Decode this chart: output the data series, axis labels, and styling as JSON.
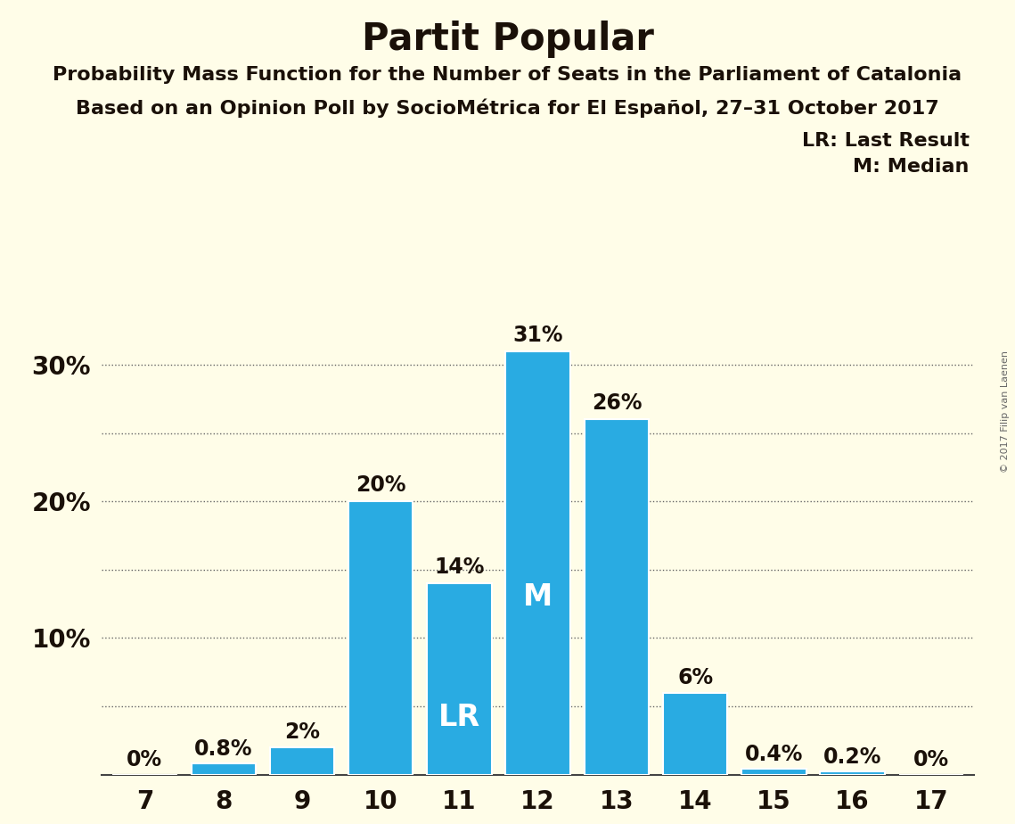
{
  "title": "Partit Popular",
  "subtitle1": "Probability Mass Function for the Number of Seats in the Parliament of Catalonia",
  "subtitle2": "Based on an Opinion Poll by SocioMétrica for El Español, 27–31 October 2017",
  "copyright": "© 2017 Filip van Laenen",
  "seats": [
    7,
    8,
    9,
    10,
    11,
    12,
    13,
    14,
    15,
    16,
    17
  ],
  "probabilities": [
    0.0,
    0.8,
    2.0,
    20.0,
    14.0,
    31.0,
    26.0,
    6.0,
    0.4,
    0.2,
    0.0
  ],
  "bar_color": "#29ABE2",
  "background_color": "#FFFDE8",
  "text_color": "#1a1008",
  "white": "#FFFFFF",
  "title_fontsize": 30,
  "subtitle_fontsize": 16,
  "ylim": [
    0,
    35
  ],
  "grid_y": [
    5,
    10,
    15,
    20,
    25,
    30
  ],
  "lr_seat": 11,
  "median_seat": 12,
  "legend_lr": "LR: Last Result",
  "legend_m": "M: Median",
  "ytick_vals": [
    10,
    20,
    30
  ],
  "ytick_labels": [
    "10%",
    "20%",
    "30%"
  ],
  "inside_label_threshold": 10,
  "label_fontsize": 17,
  "lr_m_fontsize": 24,
  "tick_fontsize": 20,
  "legend_fontsize": 16,
  "copyright_fontsize": 8
}
